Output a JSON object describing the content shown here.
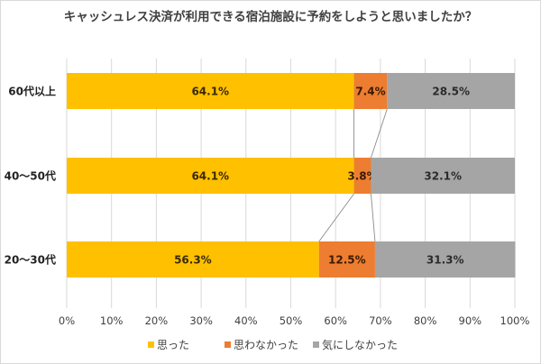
{
  "chart_data": {
    "type": "stacked-bar-horizontal",
    "title": "キャッシュレス決済が利用できる宿泊施設に予約をしようと思いましたか？",
    "categories": [
      "60代以上",
      "40～50代",
      "20～30代"
    ],
    "series": [
      {
        "name": "思った",
        "color": "#FFC000",
        "values": [
          64.1,
          64.1,
          56.3
        ],
        "labels": [
          "64.1%",
          "64.1%",
          "56.3%"
        ]
      },
      {
        "name": "思わなかった",
        "color": "#ED7D31",
        "values": [
          7.4,
          3.8,
          12.5
        ],
        "labels": [
          "7.4%",
          "3.8%",
          "12.5%"
        ]
      },
      {
        "name": "気にしなかった",
        "color": "#A5A5A5",
        "values": [
          28.5,
          32.1,
          31.3
        ],
        "labels": [
          "28.5%",
          "32.1%",
          "31.3%"
        ]
      }
    ],
    "xlim": [
      0,
      100
    ],
    "xticks": [
      "0%",
      "10%",
      "20%",
      "30%",
      "40%",
      "50%",
      "60%",
      "70%",
      "80%",
      "90%",
      "100%"
    ],
    "series_lines": true,
    "legend_position": "bottom"
  }
}
